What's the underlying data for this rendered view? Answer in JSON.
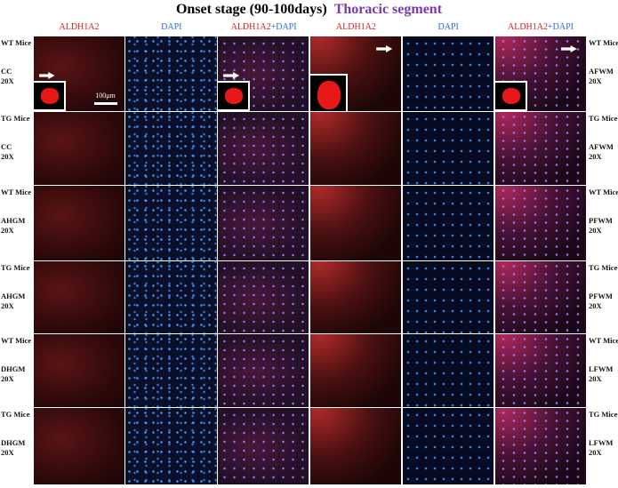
{
  "title": {
    "stage": "Onset stage (90-100days)",
    "segment": "Thoracic segment"
  },
  "column_headers": [
    {
      "marker": "ALDH1A2"
    },
    {
      "stain": "DAPI"
    },
    {
      "marker": "ALDH1A2",
      "stain": "+DAPI"
    },
    {
      "marker": "ALDH1A2"
    },
    {
      "stain": "DAPI"
    },
    {
      "marker": "ALDH1A2",
      "stain": "+DAPI"
    }
  ],
  "rows": [
    {
      "left": {
        "genotype": "WT Mice",
        "region": "CC",
        "magnification": "20X"
      },
      "right": {
        "genotype": "WT Mice",
        "region": "AFWM",
        "magnification": "20X"
      }
    },
    {
      "left": {
        "genotype": "TG Mice",
        "region": "CC",
        "magnification": "20X"
      },
      "right": {
        "genotype": "TG Mice",
        "region": "AFWM",
        "magnification": "20X"
      }
    },
    {
      "left": {
        "genotype": "WT Mice",
        "region": "AHGM",
        "magnification": "20X"
      },
      "right": {
        "genotype": "WT Mice",
        "region": "PFWM",
        "magnification": "20X"
      }
    },
    {
      "left": {
        "genotype": "TG Mice",
        "region": "AHGM",
        "magnification": "20X"
      },
      "right": {
        "genotype": "TG Mice",
        "region": "PFWM",
        "magnification": "20X"
      }
    },
    {
      "left": {
        "genotype": "WT Mice",
        "region": "DHGM",
        "magnification": "20X"
      },
      "right": {
        "genotype": "WT Mice",
        "region": "LFWM",
        "magnification": "20X"
      }
    },
    {
      "left": {
        "genotype": "TG Mice",
        "region": "DHGM",
        "magnification": "20X"
      },
      "right": {
        "genotype": "TG Mice",
        "region": "LFWM",
        "magnification": "20X"
      }
    }
  ],
  "scale_bar": "100μm"
}
